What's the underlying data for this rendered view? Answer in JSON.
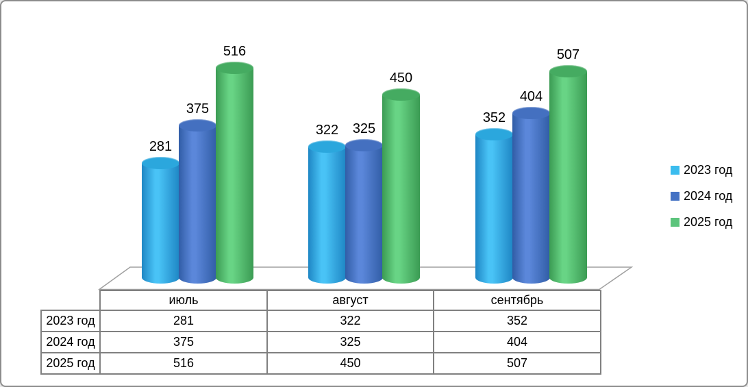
{
  "chart_data": {
    "type": "bar",
    "subtype": "3d-cylinder",
    "title": "",
    "categories": [
      "июль",
      "август",
      "сентябрь"
    ],
    "series": [
      {
        "name": "2023 год",
        "color": "#3bbcee",
        "values": [
          281,
          322,
          352
        ]
      },
      {
        "name": "2024 год",
        "color": "#4472c4",
        "values": [
          375,
          325,
          404
        ]
      },
      {
        "name": "2025 год",
        "color": "#5cc47c",
        "values": [
          516,
          450,
          507
        ]
      }
    ],
    "data_labels": true,
    "legend_position": "right",
    "grid": false,
    "ylim": [
      0,
      580
    ],
    "data_table_shown": true
  },
  "colors": {
    "series_gradients": [
      {
        "edge": "#1e86c4",
        "mid": "#49c3f6",
        "top": "#2ba7dd"
      },
      {
        "edge": "#315da6",
        "mid": "#5b87da",
        "top": "#4470c0"
      },
      {
        "edge": "#3b9b53",
        "mid": "#68d485",
        "top": "#45ab61"
      }
    ],
    "floor_line": "#a0a0a0",
    "floor_fill": "#ffffff",
    "table_border": "#808080",
    "canvas_border": "#8c8c8c",
    "text": "#000000"
  }
}
